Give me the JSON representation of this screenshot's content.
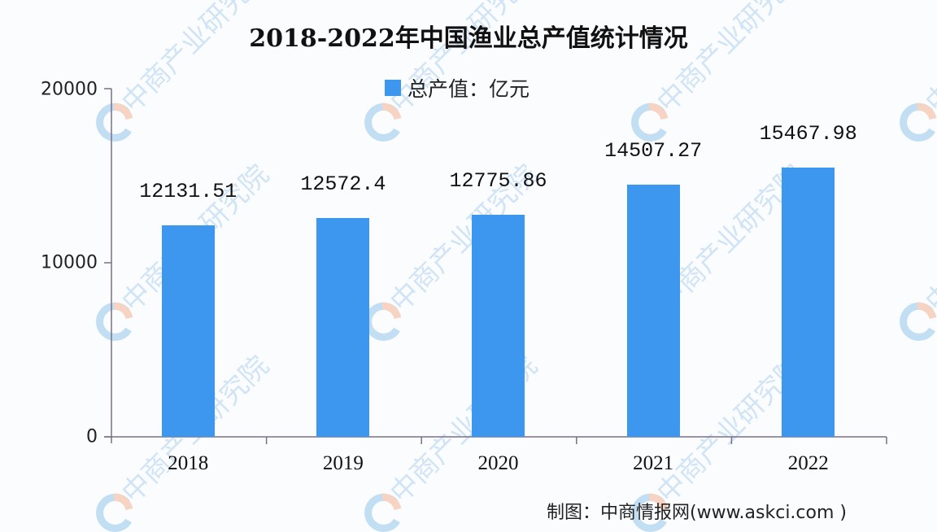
{
  "chart_data": {
    "type": "bar",
    "title": "2018-2022年中国渔业总产值统计情况",
    "categories": [
      "2018",
      "2019",
      "2020",
      "2021",
      "2022"
    ],
    "series": [
      {
        "name": "总产值：亿元",
        "values": [
          12131.51,
          12572.4,
          12775.86,
          14507.27,
          15467.98
        ],
        "labels": [
          "12131.51",
          "12572.4",
          "12775.86",
          "14507.27",
          "15467.98"
        ],
        "color": "#3d97ee"
      }
    ],
    "xlabel": "",
    "ylabel": "",
    "ylim": [
      0,
      20000
    ],
    "yticks": [
      0,
      10000,
      20000
    ],
    "grid": false,
    "legend_position": "top"
  },
  "title": "2018-2022年中国渔业总产值统计情况",
  "legend": {
    "label": "总产值：亿元",
    "color": "#3d97ee"
  },
  "y_axis": {
    "ticks": [
      "20000",
      "10000",
      "0"
    ]
  },
  "x_axis": {
    "ticks": [
      "2018",
      "2019",
      "2020",
      "2021",
      "2022"
    ]
  },
  "source": "制图：中商情报网(www.askci.com )",
  "watermark": {
    "text": "中商产业研究院",
    "icon": "askci-logo-icon"
  },
  "colors": {
    "bar": "#3d97ee",
    "axis": "#7a7088",
    "background": "#fafcfe"
  }
}
